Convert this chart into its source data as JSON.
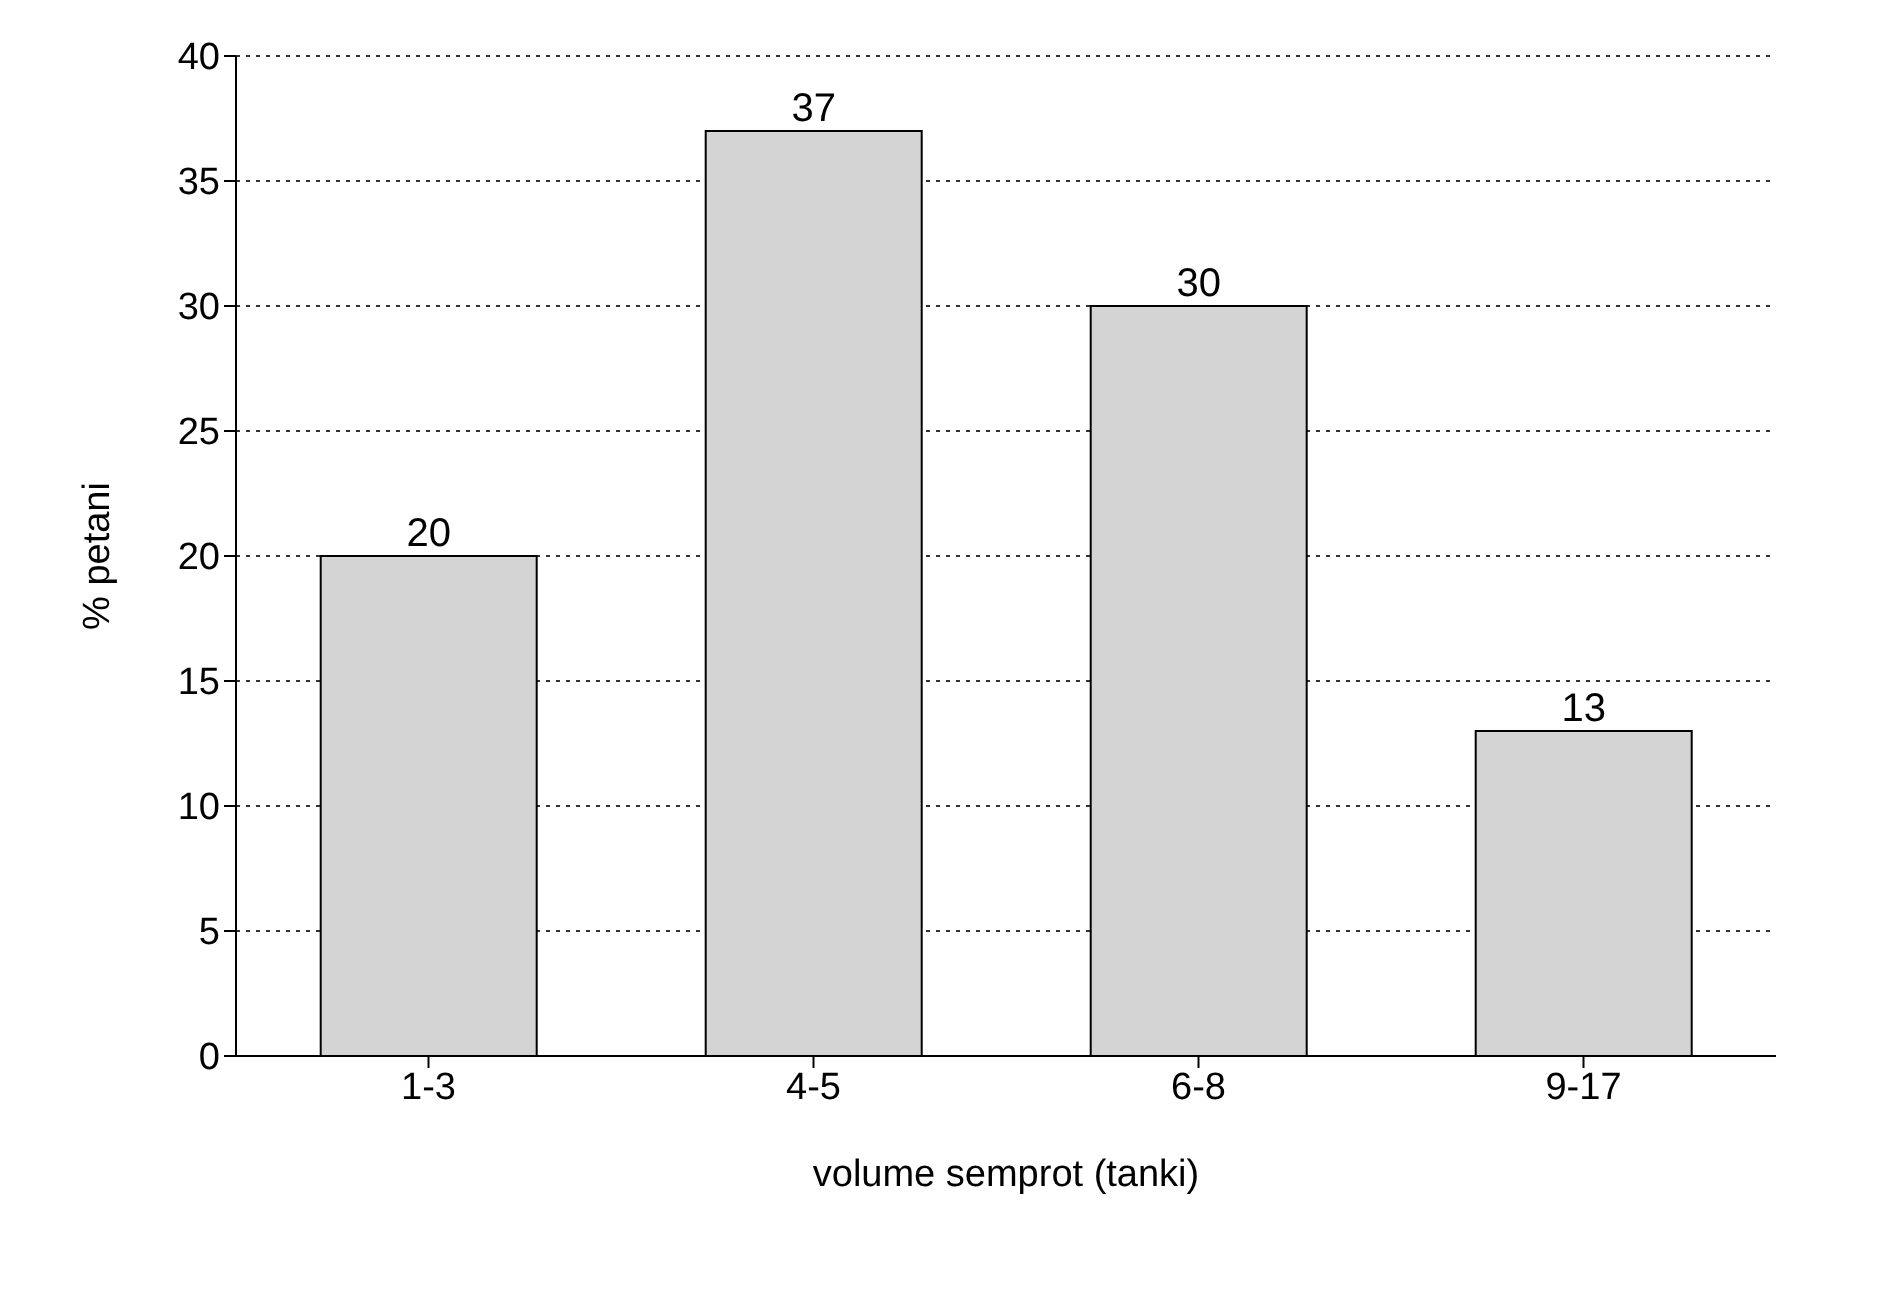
{
  "chart_data": {
    "type": "bar",
    "xlabel": "volume semprot (tanki)",
    "ylabel": "% petani",
    "categories": [
      "1-3",
      "4-5",
      "6-8",
      "9-17"
    ],
    "values": [
      20,
      37,
      30,
      13
    ],
    "color": "#d4d4d4",
    "ylim": [
      0,
      40
    ],
    "yticks": [
      0,
      5,
      10,
      15,
      20,
      25,
      30,
      35,
      40
    ],
    "grid": "y",
    "data_labels": true
  }
}
